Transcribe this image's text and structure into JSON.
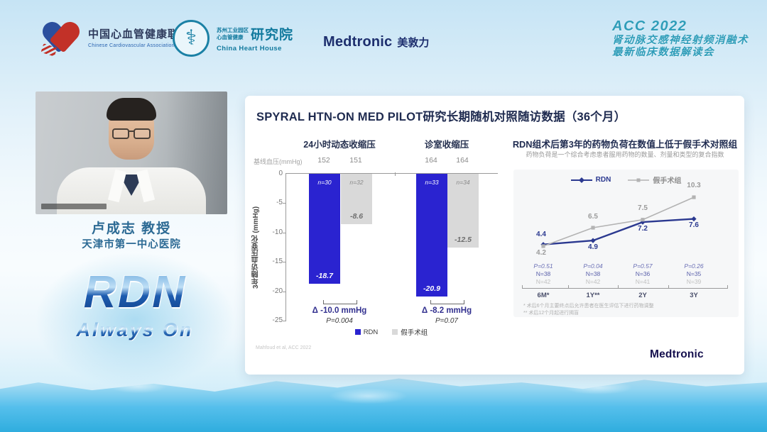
{
  "header": {
    "cca": {
      "cn": "中国心血管健康联盟",
      "en": "Chinese Cardiovascular Association"
    },
    "heart_house": {
      "small_top": "苏州工业园区",
      "small_bottom": "心血管健康",
      "big": "研究院",
      "en": "China Heart House"
    },
    "medtronic": {
      "brand": "Medtronic",
      "cn": "美敦力"
    },
    "event": {
      "line1": "ACC 2022",
      "line2": "肾动脉交感神经射频消融术",
      "line3": "最新临床数据解读会"
    }
  },
  "speaker": {
    "name": "卢成志 教授",
    "hospital": "天津市第一中心医院"
  },
  "branding": {
    "line1": "RDN",
    "line2": "Always On"
  },
  "slide": {
    "title": "SPYRAL HTN-ON MED PILOT研究长期随机对照随访数据（36个月）",
    "citation": "Mahfoud et al, ACC 2022",
    "brand": "Medtronic"
  },
  "chart_data": [
    {
      "type": "bar",
      "group_titles": [
        "24小时动态收缩压",
        "诊室收缩压"
      ],
      "baseline_label": "基线血压(mmHg)",
      "baseline_values": [
        "152",
        "151",
        "164",
        "164"
      ],
      "ylabel": "3年随访血压变化 (mmHg)",
      "ylim": [
        0,
        -25
      ],
      "yticks": [
        "0",
        "-5",
        "-10",
        "-15",
        "-20",
        "-25"
      ],
      "series": [
        {
          "name": "RDN",
          "color": "#2a23d0",
          "values": [
            -18.7,
            -20.9
          ],
          "n_labels": [
            "n=30",
            "n=33"
          ]
        },
        {
          "name": "假手术组",
          "color": "#d9d9d9",
          "values": [
            -8.6,
            -12.5
          ],
          "n_labels": [
            "n=32",
            "n=34"
          ]
        }
      ],
      "deltas": [
        {
          "label": "Δ -10.0 mmHg",
          "p": "P=0.004"
        },
        {
          "label": "Δ -8.2 mmHg",
          "p": "P=0.07"
        }
      ],
      "legend": [
        "RDN",
        "假手术组"
      ]
    },
    {
      "type": "line",
      "title": "RDN组术后第3年的药物负荷在数值上低于假手术对照组",
      "subtitle": "药物负荷是一个综合考虑患者服用药物的数量、剂量和类型的复合指数",
      "categories": [
        "6M*",
        "1Y**",
        "2Y",
        "3Y"
      ],
      "series": [
        {
          "name": "RDN",
          "color": "#2b3990",
          "values": [
            4.4,
            4.9,
            7.2,
            7.6
          ],
          "n_labels": [
            "N=38",
            "N=38",
            "N=36",
            "N=35"
          ]
        },
        {
          "name": "假手术组",
          "color": "#b3b3b3",
          "values": [
            4.2,
            6.5,
            7.5,
            10.3
          ],
          "n_labels": [
            "N=42",
            "N=42",
            "N=41",
            "N=39"
          ]
        }
      ],
      "p_values": [
        "P=0.51",
        "P=0.04",
        "P=0.57",
        "P=0.26"
      ],
      "ylim": [
        3.5,
        11
      ],
      "legend_position": "top",
      "footnotes": [
        "*  术后6个月主要终点后允许患者在医生评估下进行药物调整",
        "** 术后12个月起进行揭盲"
      ]
    }
  ]
}
